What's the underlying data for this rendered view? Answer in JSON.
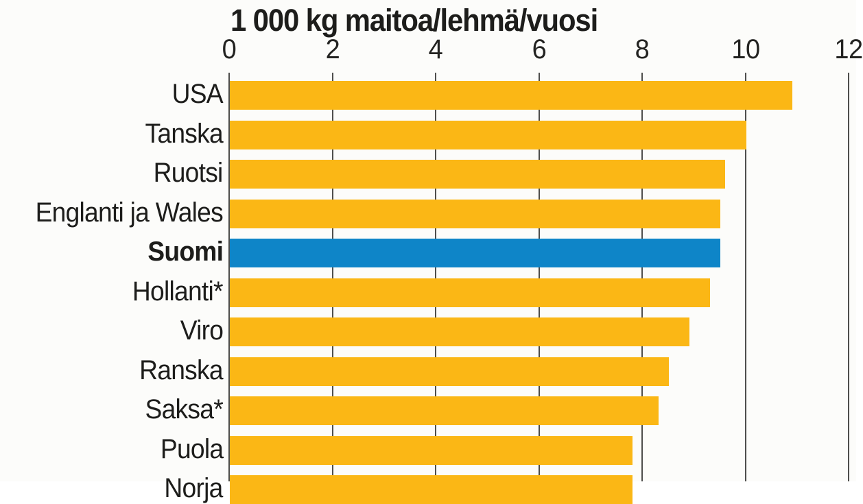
{
  "chart_data": {
    "type": "bar",
    "orientation": "horizontal",
    "title": "1 000 kg maitoa/lehmä/vuosi",
    "categories": [
      "USA",
      "Tanska",
      "Ruotsi",
      "Englanti ja Wales",
      "Suomi",
      "Hollanti*",
      "Viro",
      "Ranska",
      "Saksa*",
      "Puola",
      "Norja"
    ],
    "values": [
      10.9,
      10.0,
      9.6,
      9.5,
      9.5,
      9.3,
      8.9,
      8.5,
      8.3,
      7.8,
      7.8
    ],
    "highlight_index": 4,
    "highlight_category": "Suomi",
    "x_ticks": [
      "0",
      "2",
      "4",
      "6",
      "8",
      "10",
      "12"
    ],
    "xlim": [
      0,
      12
    ],
    "grid": "vertical-lines-on",
    "legend": "none",
    "colors": {
      "bar": "#FBB715",
      "highlight_bar": "#0E85C8",
      "text": "#1D1D1B",
      "gridline": "#4E4E4C",
      "background": "#FCFCFA"
    }
  }
}
